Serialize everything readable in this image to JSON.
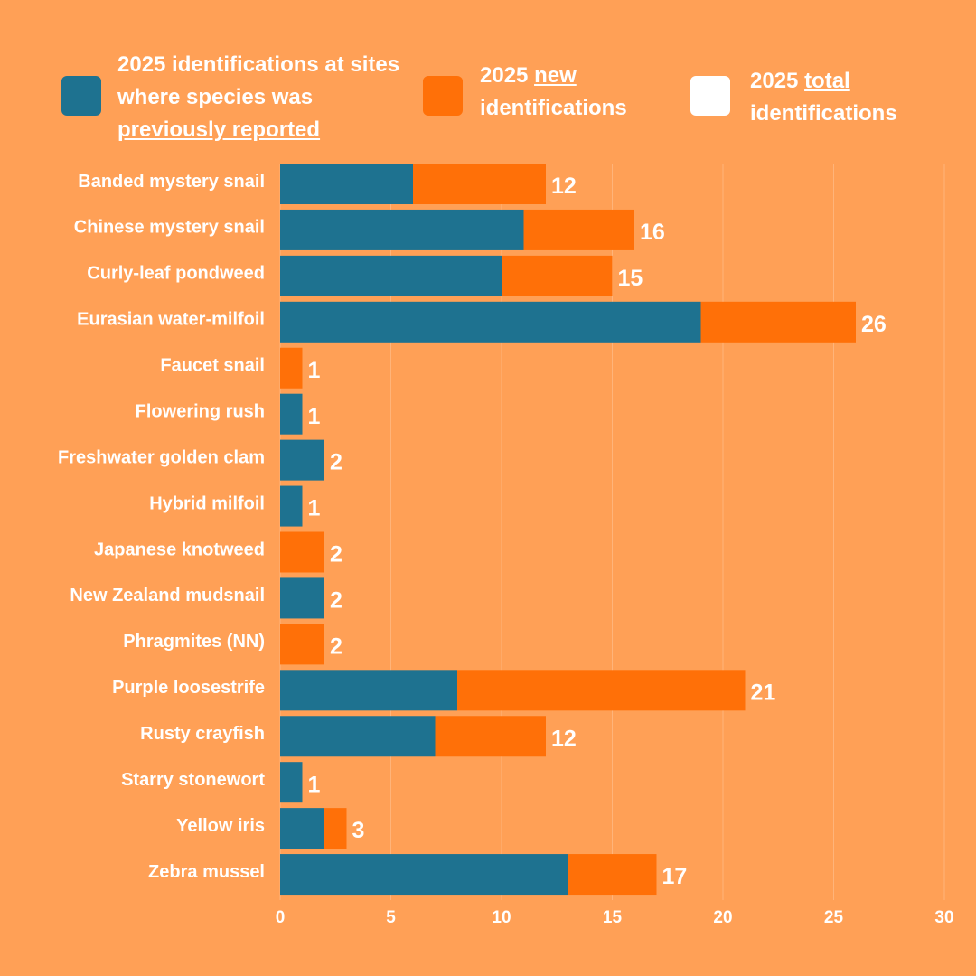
{
  "chart_data": {
    "type": "stacked-bar-horizontal",
    "categories": [
      "Banded mystery snail",
      "Chinese mystery snail",
      "Curly-leaf pondweed",
      "Eurasian water-milfoil",
      "Faucet snail",
      "Flowering rush",
      "Freshwater golden clam",
      "Hybrid milfoil",
      "Japanese knotweed",
      "New Zealand mudsnail",
      "Phragmites (NN)",
      "Purple loosestrife",
      "Rusty crayfish",
      "Starry stonewort",
      "Yellow iris",
      "Zebra mussel"
    ],
    "series": [
      {
        "name": [
          "2025 identifications at sites where species was",
          "previously reported"
        ],
        "underline": [
          false,
          true
        ],
        "color": "#1e7290",
        "values": [
          6,
          11,
          10,
          19,
          0,
          1,
          2,
          1,
          0,
          2,
          0,
          8,
          7,
          1,
          2,
          13
        ]
      },
      {
        "name": [
          "2025",
          "new",
          "identifications"
        ],
        "underline": [
          false,
          true,
          false
        ],
        "color": "#ff7008",
        "values": [
          6,
          5,
          5,
          7,
          1,
          0,
          0,
          0,
          2,
          0,
          2,
          13,
          5,
          0,
          1,
          4
        ]
      }
    ],
    "totals": {
      "name": [
        "2025",
        "total",
        "identifications"
      ],
      "underline": [
        false,
        true,
        false
      ],
      "color": "#ffffff",
      "values": [
        12,
        16,
        15,
        26,
        1,
        1,
        2,
        1,
        2,
        2,
        2,
        21,
        12,
        1,
        3,
        17
      ]
    },
    "xlim": [
      0,
      30
    ],
    "xticks": [
      0,
      5,
      10,
      15,
      20,
      25,
      30
    ],
    "grid": true
  }
}
